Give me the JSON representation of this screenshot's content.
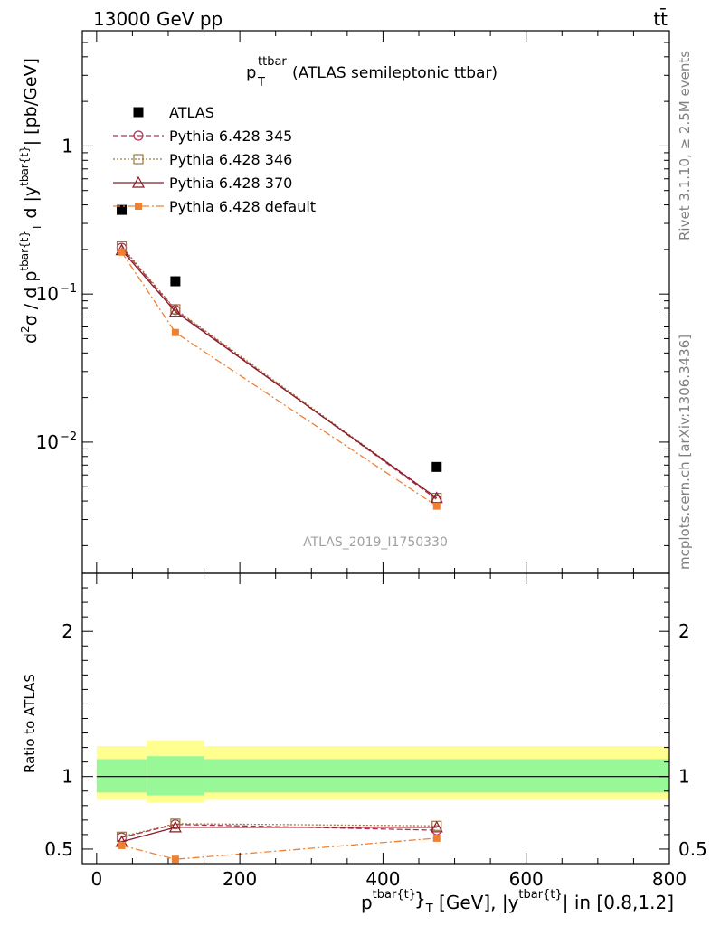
{
  "header": {
    "left": "13000 GeV pp",
    "right": "tt̄"
  },
  "side_labels": {
    "rivet": "Rivet 3.1.10, ≥ 2.5M events",
    "mcplots": "mcplots.cern.ch [arXiv:1306.3436]"
  },
  "watermark": "ATLAS_2019_I1750330",
  "colors": {
    "data": "#000000",
    "p345": "#b03050",
    "p346": "#9a7a40",
    "p370": "#8b1a2a",
    "pdefault": "#f08030",
    "band_inner": "#98f898",
    "band_outer": "#ffff90"
  },
  "chart_data": [
    {
      "type": "line",
      "panel": "main",
      "title": {
        "main": "p",
        "sup": "ttbar",
        "sub": "T",
        "rest": "(ATLAS semileptonic ttbar)"
      },
      "ylabel": "d²σ / d p^{tbar{t}}_T d |y^{tbar{t}}| [pb/GeV]",
      "yscale": "log",
      "xlim": [
        -20,
        800
      ],
      "ylim": [
        0.0013,
        6.0
      ],
      "yticks": [
        {
          "value": 0.01,
          "base": "10",
          "exp": "−2"
        },
        {
          "value": 0.1,
          "base": "10",
          "exp": "−1"
        },
        {
          "value": 1,
          "label": "1"
        }
      ],
      "x": [
        35,
        110,
        475
      ],
      "series": [
        {
          "name": "ATLAS",
          "key": "data",
          "values": [
            0.37,
            0.122,
            0.0068
          ]
        },
        {
          "name": "Pythia 6.428 345",
          "key": "p345",
          "values": [
            0.205,
            0.078,
            0.0041
          ]
        },
        {
          "name": "Pythia 6.428 346",
          "key": "p346",
          "values": [
            0.21,
            0.079,
            0.0042
          ]
        },
        {
          "name": "Pythia 6.428 370",
          "key": "p370",
          "values": [
            0.198,
            0.076,
            0.0042
          ]
        },
        {
          "name": "Pythia 6.428 default",
          "key": "pdefault",
          "values": [
            0.192,
            0.055,
            0.0037
          ]
        }
      ]
    },
    {
      "type": "line",
      "panel": "ratio",
      "ylabel": "Ratio to ATLAS",
      "xlabel": "p^{tbar{t}}_T [GeV], |y^{tbar{t}}| in [0.8,1.2]",
      "xlim": [
        -20,
        800
      ],
      "ylim": [
        0.4,
        2.4
      ],
      "xticks": [
        0,
        200,
        400,
        600,
        800
      ],
      "yticks": [
        0.5,
        1,
        2
      ],
      "bins": [
        {
          "lo": 0,
          "hi": 70,
          "inner": [
            0.89,
            1.12
          ],
          "outer": [
            0.84,
            1.21
          ]
        },
        {
          "lo": 70,
          "hi": 150,
          "inner": [
            0.87,
            1.14
          ],
          "outer": [
            0.82,
            1.25
          ]
        },
        {
          "lo": 150,
          "hi": 800,
          "inner": [
            0.89,
            1.12
          ],
          "outer": [
            0.84,
            1.21
          ]
        }
      ],
      "x": [
        35,
        110,
        475
      ],
      "series": [
        {
          "name": "Pythia 6.428 345",
          "key": "p345",
          "values": [
            0.58,
            0.67,
            0.63
          ]
        },
        {
          "name": "Pythia 6.428 346",
          "key": "p346",
          "values": [
            0.585,
            0.675,
            0.66
          ]
        },
        {
          "name": "Pythia 6.428 370",
          "key": "p370",
          "values": [
            0.55,
            0.65,
            0.65
          ]
        },
        {
          "name": "Pythia 6.428 default",
          "key": "pdefault",
          "values": [
            0.525,
            0.43,
            0.575
          ]
        }
      ]
    }
  ]
}
